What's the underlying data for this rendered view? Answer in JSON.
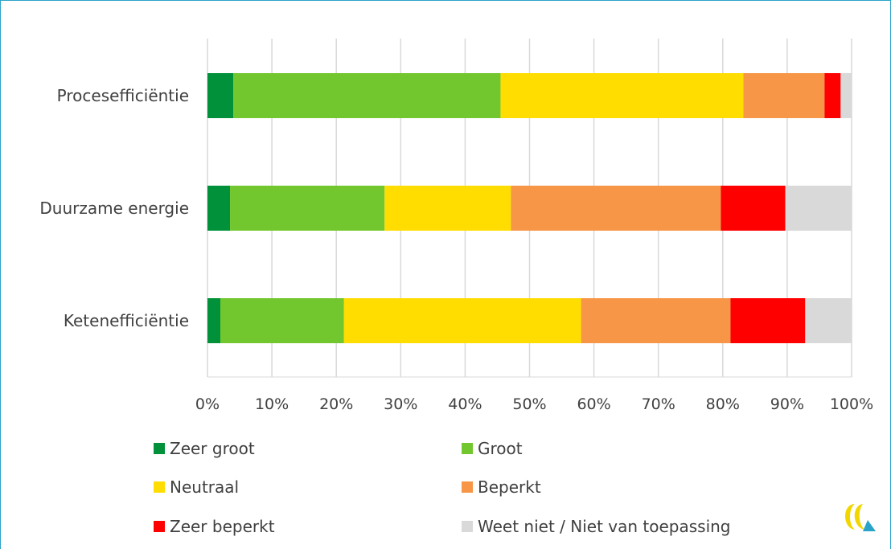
{
  "chart_data": {
    "type": "bar",
    "orientation": "horizontal",
    "stacked": "percent",
    "categories": [
      "Procesefficiëntie",
      "Duurzame energie",
      "Ketenefficiëntie"
    ],
    "series": [
      {
        "name": "Zeer groot",
        "color": "#00913a",
        "values": [
          4,
          3.5,
          2
        ]
      },
      {
        "name": "Groot",
        "color": "#72c72f",
        "values": [
          41.5,
          24,
          19.2
        ]
      },
      {
        "name": "Neutraal",
        "color": "#ffdd00",
        "values": [
          37.7,
          19.6,
          36.8
        ]
      },
      {
        "name": "Beperkt",
        "color": "#f79646",
        "values": [
          12.6,
          32.6,
          23.2
        ]
      },
      {
        "name": "Zeer beperkt",
        "color": "#ff0000",
        "values": [
          2.5,
          10,
          11.6
        ]
      },
      {
        "name": "Weet niet / Niet van toepassing",
        "color": "#d9d9d9",
        "values": [
          1.7,
          10.3,
          7.2
        ]
      }
    ],
    "xticks": [
      "0%",
      "10%",
      "20%",
      "30%",
      "40%",
      "50%",
      "60%",
      "70%",
      "80%",
      "90%",
      "100%"
    ],
    "xlim": [
      0,
      100
    ],
    "grid": true,
    "legend_position": "bottom"
  },
  "logo": {
    "name": "logo-icon",
    "colors": [
      "#f2d600",
      "#2aa3c9"
    ]
  }
}
